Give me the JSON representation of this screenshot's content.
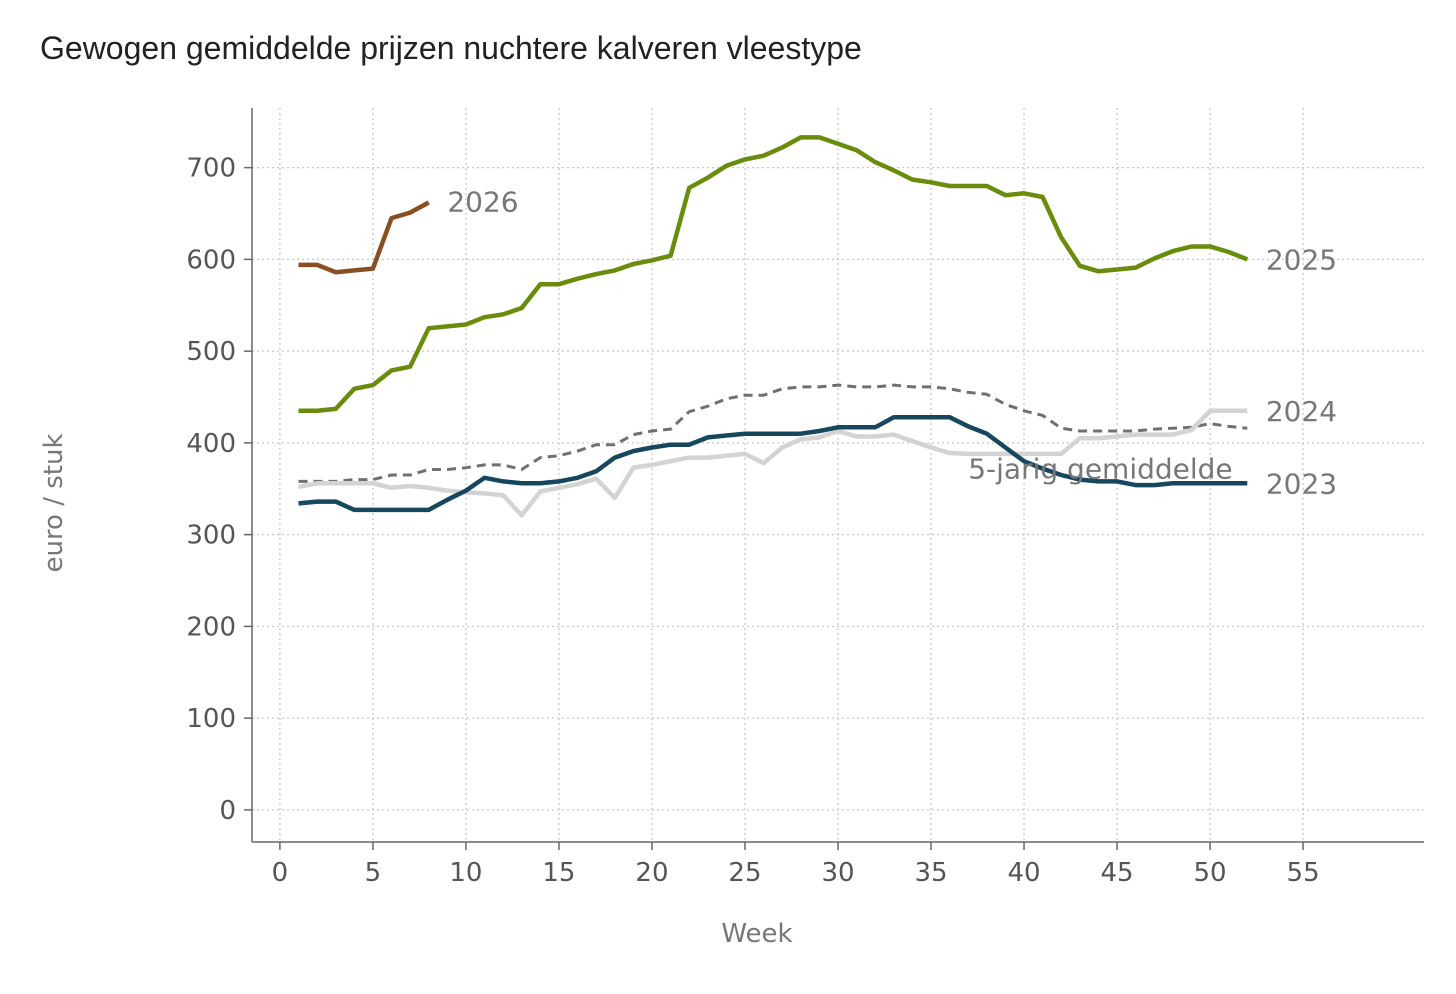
{
  "chart_data": {
    "type": "line",
    "title": "Gewogen gemiddelde prijzen nuchtere kalveren vleestype",
    "xlabel": "Week",
    "ylabel": "euro / stuk",
    "xlim": [
      -1.5,
      61.5
    ],
    "ylim": [
      -35,
      765
    ],
    "xticks": [
      0,
      5,
      10,
      15,
      20,
      25,
      30,
      35,
      40,
      45,
      50,
      55
    ],
    "yticks": [
      0,
      100,
      200,
      300,
      400,
      500,
      600,
      700
    ],
    "grid": true,
    "legend": "direct labels",
    "series": [
      {
        "name": "5-jarig gemiddelde",
        "color": "#707070",
        "dashed": true,
        "label_point": [
          37,
          372
        ],
        "x": [
          1,
          2,
          3,
          4,
          5,
          6,
          7,
          8,
          9,
          10,
          11,
          12,
          13,
          14,
          15,
          16,
          17,
          18,
          19,
          20,
          21,
          22,
          23,
          24,
          25,
          26,
          27,
          28,
          29,
          30,
          31,
          32,
          33,
          34,
          35,
          36,
          37,
          38,
          39,
          40,
          41,
          42,
          43,
          44,
          45,
          46,
          47,
          48,
          49,
          50,
          51,
          52
        ],
        "y": [
          358,
          358,
          358,
          360,
          360,
          365,
          365,
          371,
          371,
          373,
          376,
          376,
          371,
          384,
          386,
          391,
          398,
          398,
          409,
          413,
          415,
          434,
          440,
          448,
          452,
          452,
          459,
          461,
          461,
          463,
          461,
          461,
          463,
          461,
          461,
          459,
          455,
          453,
          442,
          435,
          430,
          416,
          413,
          413,
          413,
          413,
          415,
          416,
          417,
          421,
          418,
          416
        ]
      },
      {
        "name": "2024",
        "color": "#d3d3d3",
        "label_point": [
          53,
          435
        ],
        "x": [
          1,
          2,
          3,
          4,
          5,
          6,
          7,
          8,
          9,
          10,
          11,
          12,
          13,
          14,
          15,
          16,
          17,
          18,
          19,
          20,
          21,
          22,
          23,
          24,
          25,
          26,
          27,
          28,
          29,
          30,
          31,
          32,
          33,
          34,
          35,
          36,
          37,
          38,
          39,
          40,
          41,
          42,
          43,
          44,
          45,
          46,
          47,
          48,
          49,
          50,
          51,
          52
        ],
        "y": [
          352,
          356,
          356,
          356,
          356,
          351,
          353,
          351,
          348,
          346,
          345,
          343,
          321,
          347,
          351,
          355,
          361,
          340,
          373,
          376,
          380,
          384,
          384,
          386,
          388,
          378,
          395,
          404,
          406,
          413,
          407,
          407,
          409,
          402,
          395,
          389,
          388,
          388,
          388,
          388,
          388,
          388,
          405,
          405,
          407,
          409,
          409,
          409,
          414,
          435,
          435,
          435
        ]
      },
      {
        "name": "2023",
        "color": "#17475e",
        "label_point": [
          53,
          356
        ],
        "x": [
          1,
          2,
          3,
          4,
          5,
          6,
          7,
          8,
          9,
          10,
          11,
          12,
          13,
          14,
          15,
          16,
          17,
          18,
          19,
          20,
          21,
          22,
          23,
          24,
          25,
          26,
          27,
          28,
          29,
          30,
          31,
          32,
          33,
          34,
          35,
          36,
          37,
          38,
          39,
          40,
          41,
          42,
          43,
          44,
          45,
          46,
          47,
          48,
          49,
          50,
          51,
          52
        ],
        "y": [
          334,
          336,
          336,
          327,
          327,
          327,
          327,
          327,
          338,
          348,
          362,
          358,
          356,
          356,
          358,
          362,
          369,
          384,
          391,
          395,
          398,
          398,
          406,
          408,
          410,
          410,
          410,
          410,
          413,
          417,
          417,
          417,
          428,
          428,
          428,
          428,
          418,
          410,
          395,
          380,
          372,
          365,
          360,
          358,
          358,
          354,
          354,
          356,
          356,
          356,
          356,
          356
        ]
      },
      {
        "name": "2025",
        "color": "#6a8c0c",
        "label_point": [
          53,
          600
        ],
        "x": [
          1,
          2,
          3,
          4,
          5,
          6,
          7,
          8,
          9,
          10,
          11,
          12,
          13,
          14,
          15,
          16,
          17,
          18,
          19,
          20,
          21,
          22,
          23,
          24,
          25,
          26,
          27,
          28,
          29,
          30,
          31,
          32,
          33,
          34,
          35,
          36,
          37,
          38,
          39,
          40,
          41,
          42,
          43,
          44,
          45,
          46,
          47,
          48,
          49,
          50,
          51,
          52
        ],
        "y": [
          435,
          435,
          437,
          459,
          463,
          479,
          483,
          525,
          527,
          529,
          537,
          540,
          547,
          573,
          573,
          579,
          584,
          588,
          595,
          599,
          604,
          678,
          689,
          702,
          709,
          713,
          722,
          733,
          733,
          726,
          719,
          706,
          697,
          687,
          684,
          680,
          680,
          680,
          670,
          672,
          668,
          624,
          593,
          587,
          589,
          591,
          601,
          609,
          614,
          614,
          608,
          600
        ]
      },
      {
        "name": "2026",
        "color": "#8a4e23",
        "label_point": [
          9,
          663
        ],
        "x": [
          1,
          2,
          3,
          4,
          5,
          6,
          7,
          8
        ],
        "y": [
          594,
          594,
          586,
          588,
          590,
          645,
          651,
          662
        ]
      }
    ]
  }
}
